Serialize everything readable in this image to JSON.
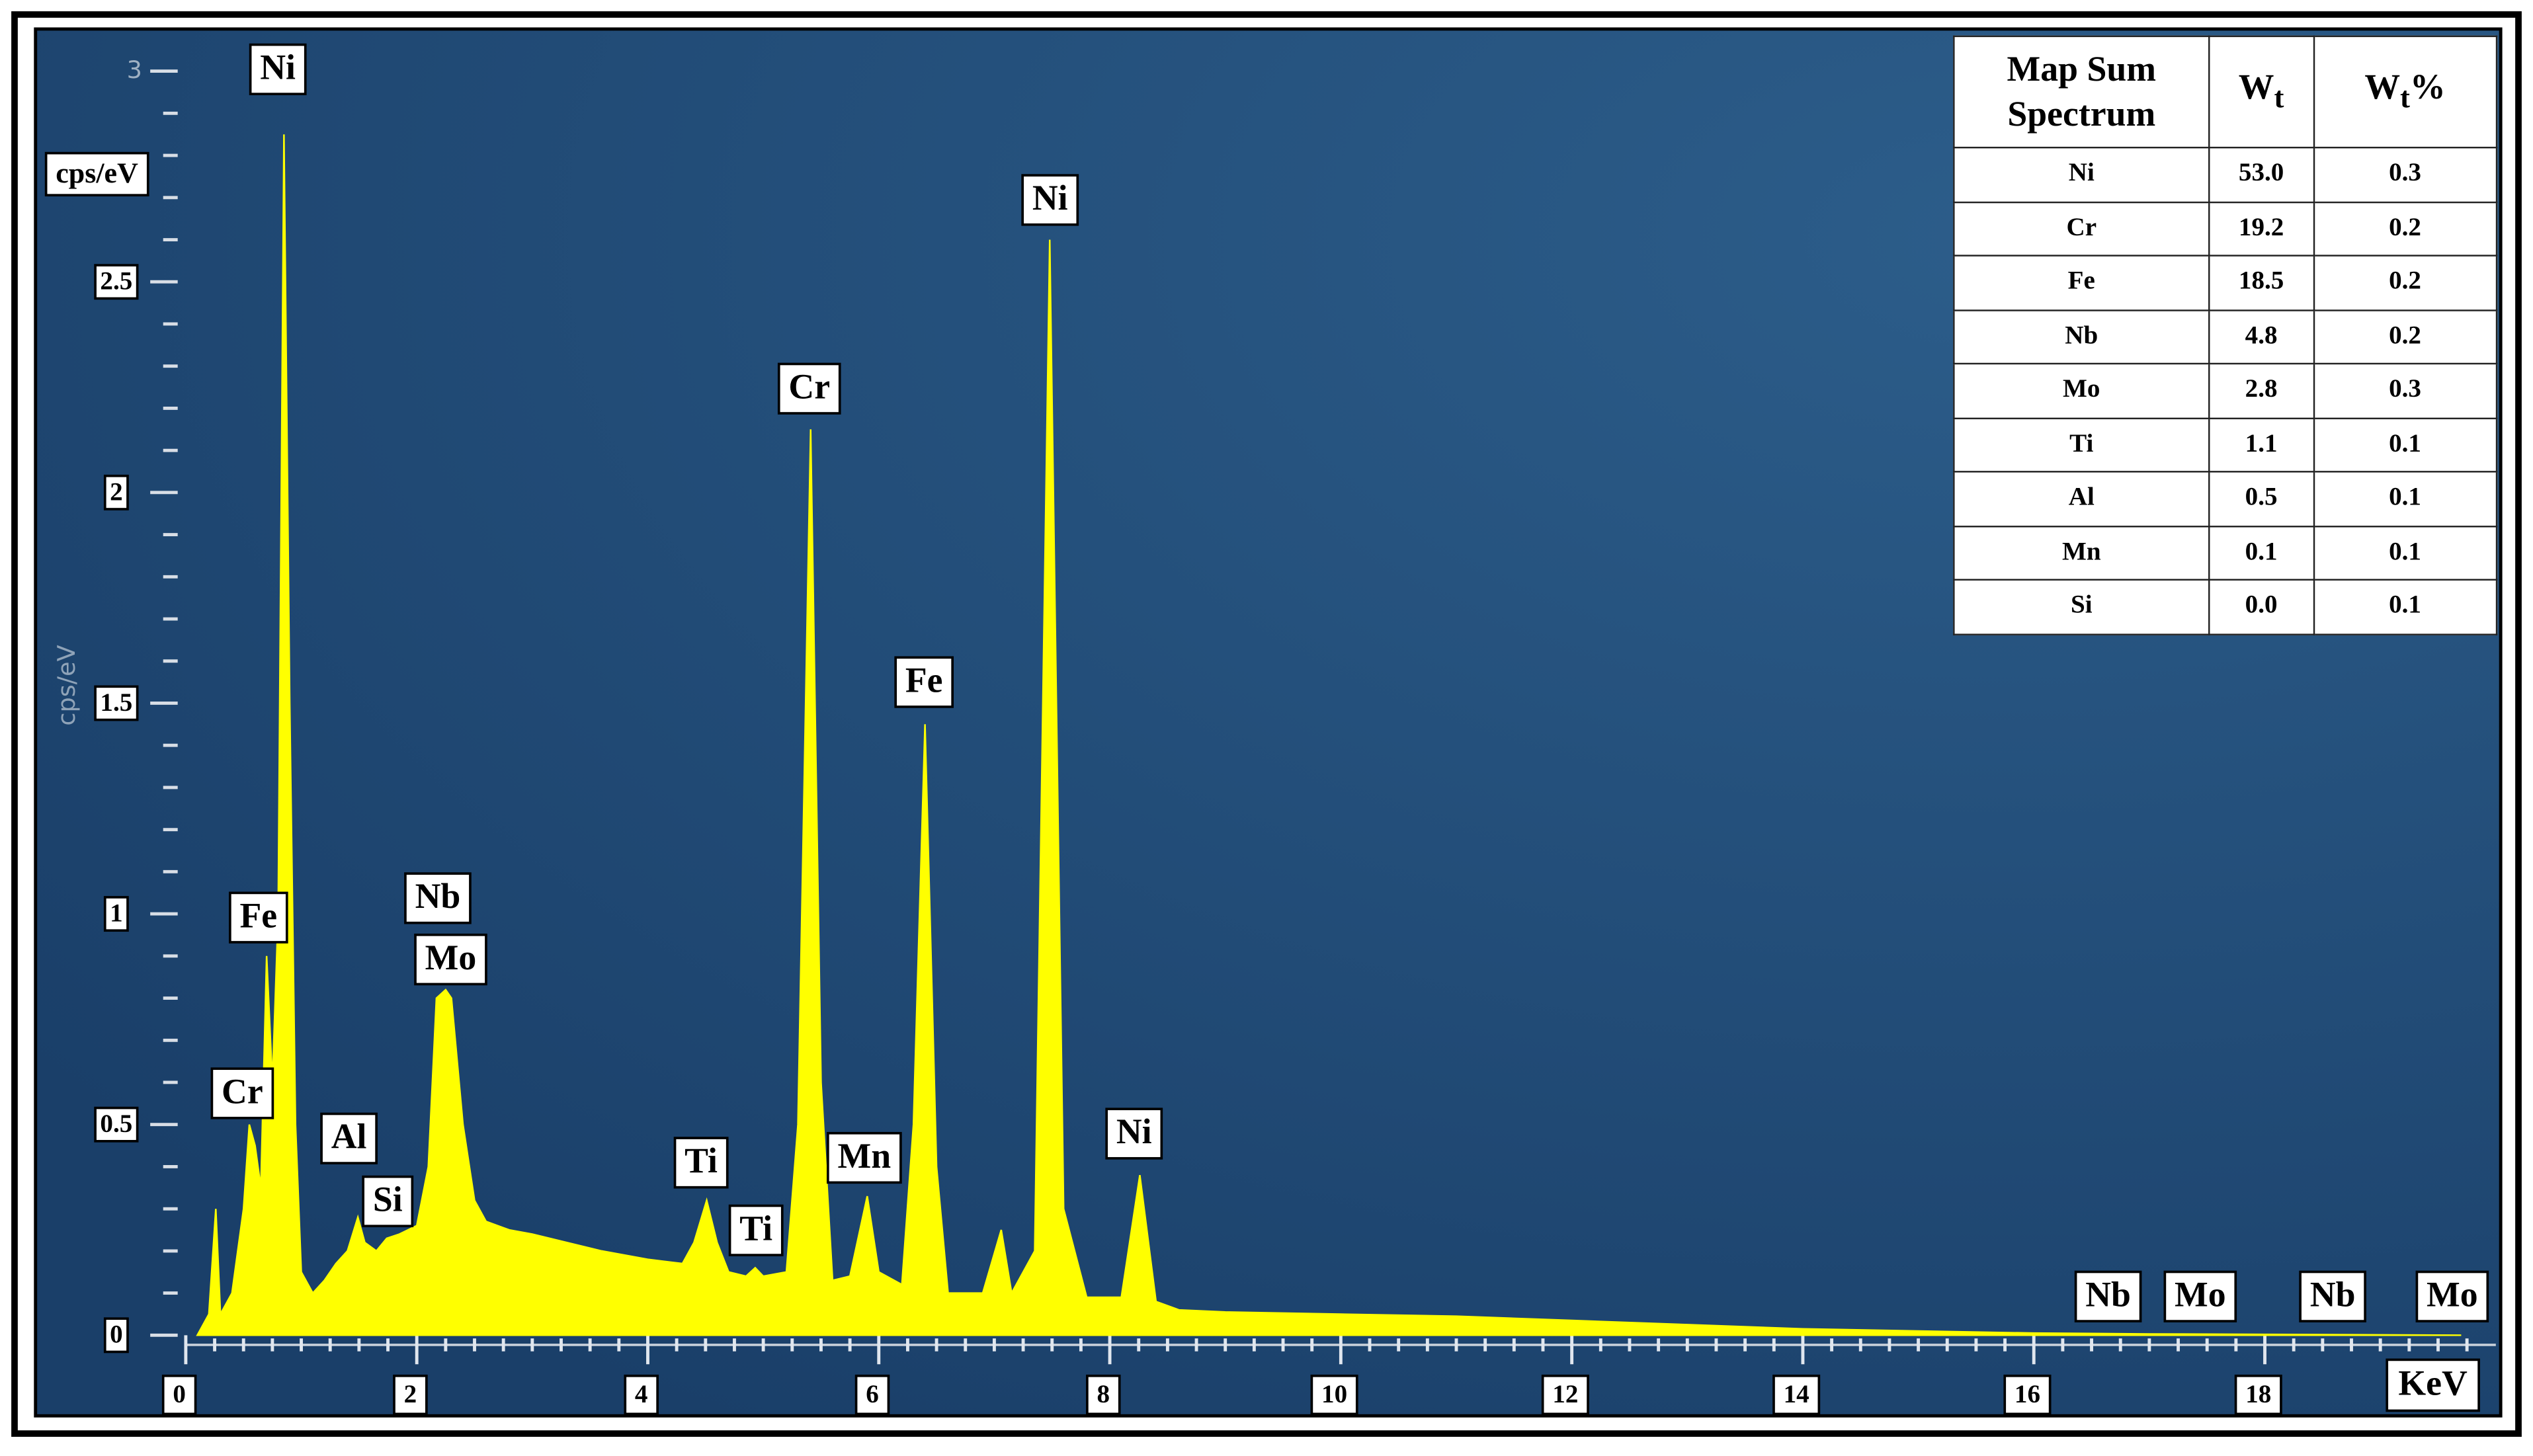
{
  "chart_data": {
    "type": "area",
    "x_label": "KeV",
    "y_label": "cps/eV",
    "y_label_boxed": "cps/eV",
    "xlim": [
      0,
      20
    ],
    "ylim": [
      0,
      3.1
    ],
    "xticks": [
      0,
      2,
      4,
      6,
      8,
      10,
      12,
      14,
      16,
      18
    ],
    "yticks": [
      0,
      0.5,
      1,
      1.5,
      2,
      2.5,
      3
    ],
    "color": "#ffff00",
    "x": [
      0.1,
      0.2,
      0.26,
      0.3,
      0.4,
      0.5,
      0.55,
      0.6,
      0.65,
      0.7,
      0.75,
      0.8,
      0.85,
      0.9,
      0.95,
      1.0,
      1.1,
      1.2,
      1.3,
      1.4,
      1.49,
      1.55,
      1.65,
      1.74,
      1.85,
      2.0,
      2.1,
      2.17,
      2.25,
      2.3,
      2.4,
      2.5,
      2.6,
      2.8,
      3.0,
      3.3,
      3.6,
      4.0,
      4.3,
      4.4,
      4.51,
      4.6,
      4.7,
      4.85,
      4.93,
      5.0,
      5.2,
      5.3,
      5.41,
      5.5,
      5.6,
      5.75,
      5.9,
      6.0,
      6.2,
      6.3,
      6.4,
      6.5,
      6.6,
      6.9,
      7.06,
      7.15,
      7.35,
      7.48,
      7.6,
      7.8,
      8.1,
      8.26,
      8.4,
      8.6,
      9,
      10,
      11,
      12,
      13,
      14,
      15,
      16,
      17,
      18,
      19.7
    ],
    "values": [
      0,
      0.05,
      0.3,
      0.05,
      0.1,
      0.3,
      0.5,
      0.45,
      0.35,
      0.9,
      0.6,
      1.0,
      2.85,
      1.5,
      0.5,
      0.15,
      0.1,
      0.13,
      0.17,
      0.2,
      0.28,
      0.22,
      0.2,
      0.23,
      0.24,
      0.26,
      0.4,
      0.8,
      0.82,
      0.8,
      0.5,
      0.32,
      0.27,
      0.25,
      0.24,
      0.22,
      0.2,
      0.18,
      0.17,
      0.22,
      0.32,
      0.22,
      0.15,
      0.14,
      0.16,
      0.14,
      0.15,
      0.5,
      2.15,
      0.6,
      0.13,
      0.14,
      0.33,
      0.15,
      0.12,
      0.5,
      1.45,
      0.4,
      0.1,
      0.1,
      0.25,
      0.1,
      0.2,
      2.6,
      0.3,
      0.09,
      0.09,
      0.38,
      0.08,
      0.06,
      0.055,
      0.05,
      0.045,
      0.035,
      0.025,
      0.015,
      0.01,
      0.005,
      0.003,
      0.002,
      0
    ],
    "annotations": [
      "Ni",
      "Ni",
      "Cr",
      "Fe",
      "Fe",
      "Nb",
      "Mo",
      "Cr",
      "Al",
      "Si",
      "Ti",
      "Ti",
      "Mn",
      "Ni",
      "Nb",
      "Mo",
      "Nb",
      "Mo"
    ]
  },
  "table": {
    "header": [
      {
        "text": "Map Sum Spectrum"
      },
      {
        "text": "W",
        "sub": "t"
      },
      {
        "text": "W",
        "sub": "t",
        "suffix": "%"
      }
    ],
    "rows": [
      [
        "Ni",
        "53.0",
        "0.3"
      ],
      [
        "Cr",
        "19.2",
        "0.2"
      ],
      [
        "Fe",
        "18.5",
        "0.2"
      ],
      [
        "Nb",
        "4.8",
        "0.2"
      ],
      [
        "Mo",
        "2.8",
        "0.3"
      ],
      [
        "Ti",
        "1.1",
        "0.1"
      ],
      [
        "Al",
        "0.5",
        "0.1"
      ],
      [
        "Mn",
        "0.1",
        "0.1"
      ],
      [
        "Si",
        "0.0",
        "0.1"
      ]
    ]
  }
}
